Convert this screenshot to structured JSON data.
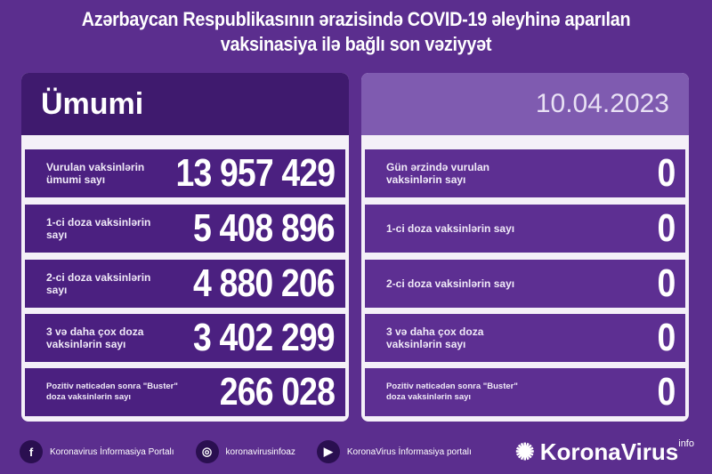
{
  "title_line1": "Azərbaycan Respublikasının ərazisində COVID-19 əleyhinə aparılan",
  "title_line2": "vaksinasiya ilə bağlı son vəziyyət",
  "left": {
    "header": "Ümumi",
    "rows": [
      {
        "label": "Vurulan vaksinlərin ümumi sayı",
        "value": "13 957 429"
      },
      {
        "label": "1-ci doza vaksinlərin sayı",
        "value": "5 408 896"
      },
      {
        "label": "2-ci doza vaksinlərin sayı",
        "value": "4 880 206"
      },
      {
        "label": "3 və daha çox doza vaksinlərin sayı",
        "value": "3 402 299"
      },
      {
        "label": "Pozitiv nəticədən sonra \"Buster\" doza vaksinlərin sayı",
        "value": "266 028"
      }
    ]
  },
  "right": {
    "header": "10.04.2023",
    "rows": [
      {
        "label": "Gün ərzində vurulan vaksinlərin sayı",
        "value": "0"
      },
      {
        "label": "1-ci doza vaksinlərin sayı",
        "value": "0"
      },
      {
        "label": "2-ci doza vaksinlərin sayı",
        "value": "0"
      },
      {
        "label": "3 və daha çox doza vaksinlərin sayı",
        "value": "0"
      },
      {
        "label": "Pozitiv nəticədən sonra \"Buster\" doza vaksinlərin sayı",
        "value": "0"
      }
    ]
  },
  "footer": {
    "facebook": "Koronavirus İnformasiya Portalı",
    "instagram": "koronavirusinfoaz",
    "youtube": "KoronaVirus İnformasiya portalı",
    "brand": "KoronaVirus",
    "brand_sup": "info"
  },
  "colors": {
    "background": "#5b2e8e",
    "row": "#4b2080",
    "date_header": "#7f5bb0"
  }
}
